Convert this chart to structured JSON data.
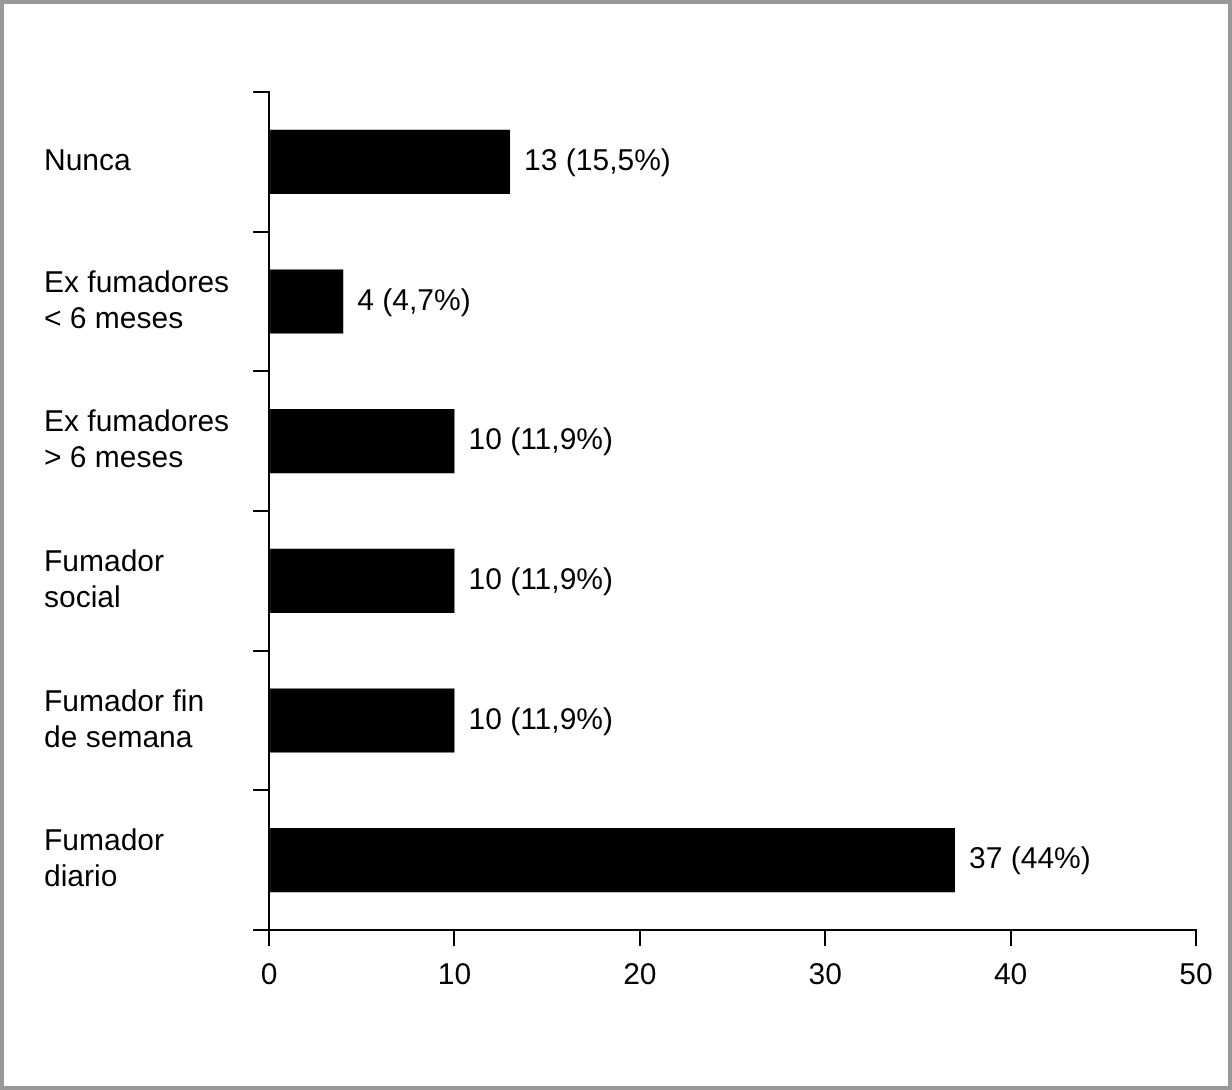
{
  "chart_data": {
    "type": "bar",
    "orientation": "horizontal",
    "categories": [
      "Nunca",
      "Ex fumadores < 6 meses",
      "Ex fumadores > 6 meses",
      "Fumador social",
      "Fumador fin de semana",
      "Fumador diario"
    ],
    "values": [
      13,
      4,
      10,
      10,
      10,
      37
    ],
    "value_labels": [
      "13 (15,5%)",
      "4 (4,7%)",
      "10 (11,9%)",
      "10 (11,9%)",
      "10 (11,9%)",
      "37 (44%)"
    ],
    "color": "#000000",
    "xlim": [
      0,
      50
    ],
    "xticks": [
      0,
      10,
      20,
      30,
      40,
      50
    ],
    "grid": false,
    "legend": false
  }
}
